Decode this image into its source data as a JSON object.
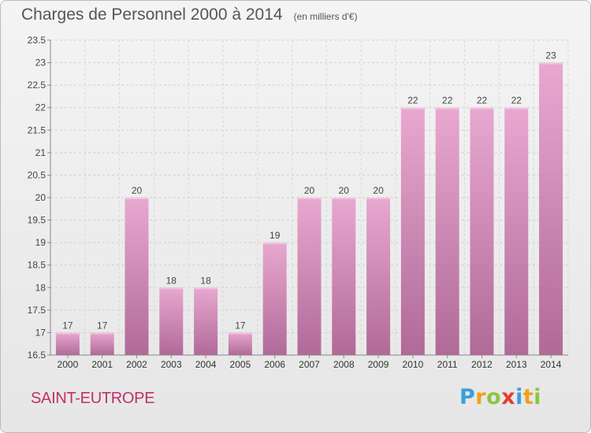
{
  "header": {
    "title": "Charges de Personnel 2000 à 2014",
    "subtitle": "(en milliers d'€)"
  },
  "commune": "SAINT-EUTROPE",
  "logo": {
    "text": "Proxiti",
    "letters": [
      "P",
      "r",
      "o",
      "x",
      "i",
      "t",
      "i"
    ]
  },
  "colors": {
    "bar_top": "#e8a8d0",
    "bar_bottom": "#b06a98",
    "bar_light": "#f0c4e0",
    "accent_text": "#c0306a"
  },
  "chart_data": {
    "type": "bar",
    "title": "Charges de Personnel 2000 à 2014",
    "subtitle": "(en milliers d'€)",
    "categories": [
      "2000",
      "2001",
      "2002",
      "2003",
      "2004",
      "2005",
      "2006",
      "2007",
      "2008",
      "2009",
      "2010",
      "2011",
      "2012",
      "2013",
      "2014"
    ],
    "values": [
      17,
      17,
      20,
      18,
      18,
      17,
      19,
      20,
      20,
      20,
      22,
      22,
      22,
      22,
      23
    ],
    "data_labels": [
      "17",
      "17",
      "20",
      "18",
      "18",
      "17",
      "19",
      "20",
      "20",
      "20",
      "22",
      "22",
      "22",
      "22",
      "23"
    ],
    "ylim": [
      16.5,
      23.5
    ],
    "yticks": [
      16.5,
      17,
      17.5,
      18,
      18.5,
      19,
      19.5,
      20,
      20.5,
      21,
      21.5,
      22,
      22.5,
      23,
      23.5
    ],
    "ytick_labels": [
      "16.5",
      "17",
      "17.5",
      "18",
      "18.5",
      "19",
      "19.5",
      "20",
      "20.5",
      "21",
      "21.5",
      "22",
      "22.5",
      "23",
      "23.5"
    ],
    "grid": true,
    "legend": "none"
  }
}
